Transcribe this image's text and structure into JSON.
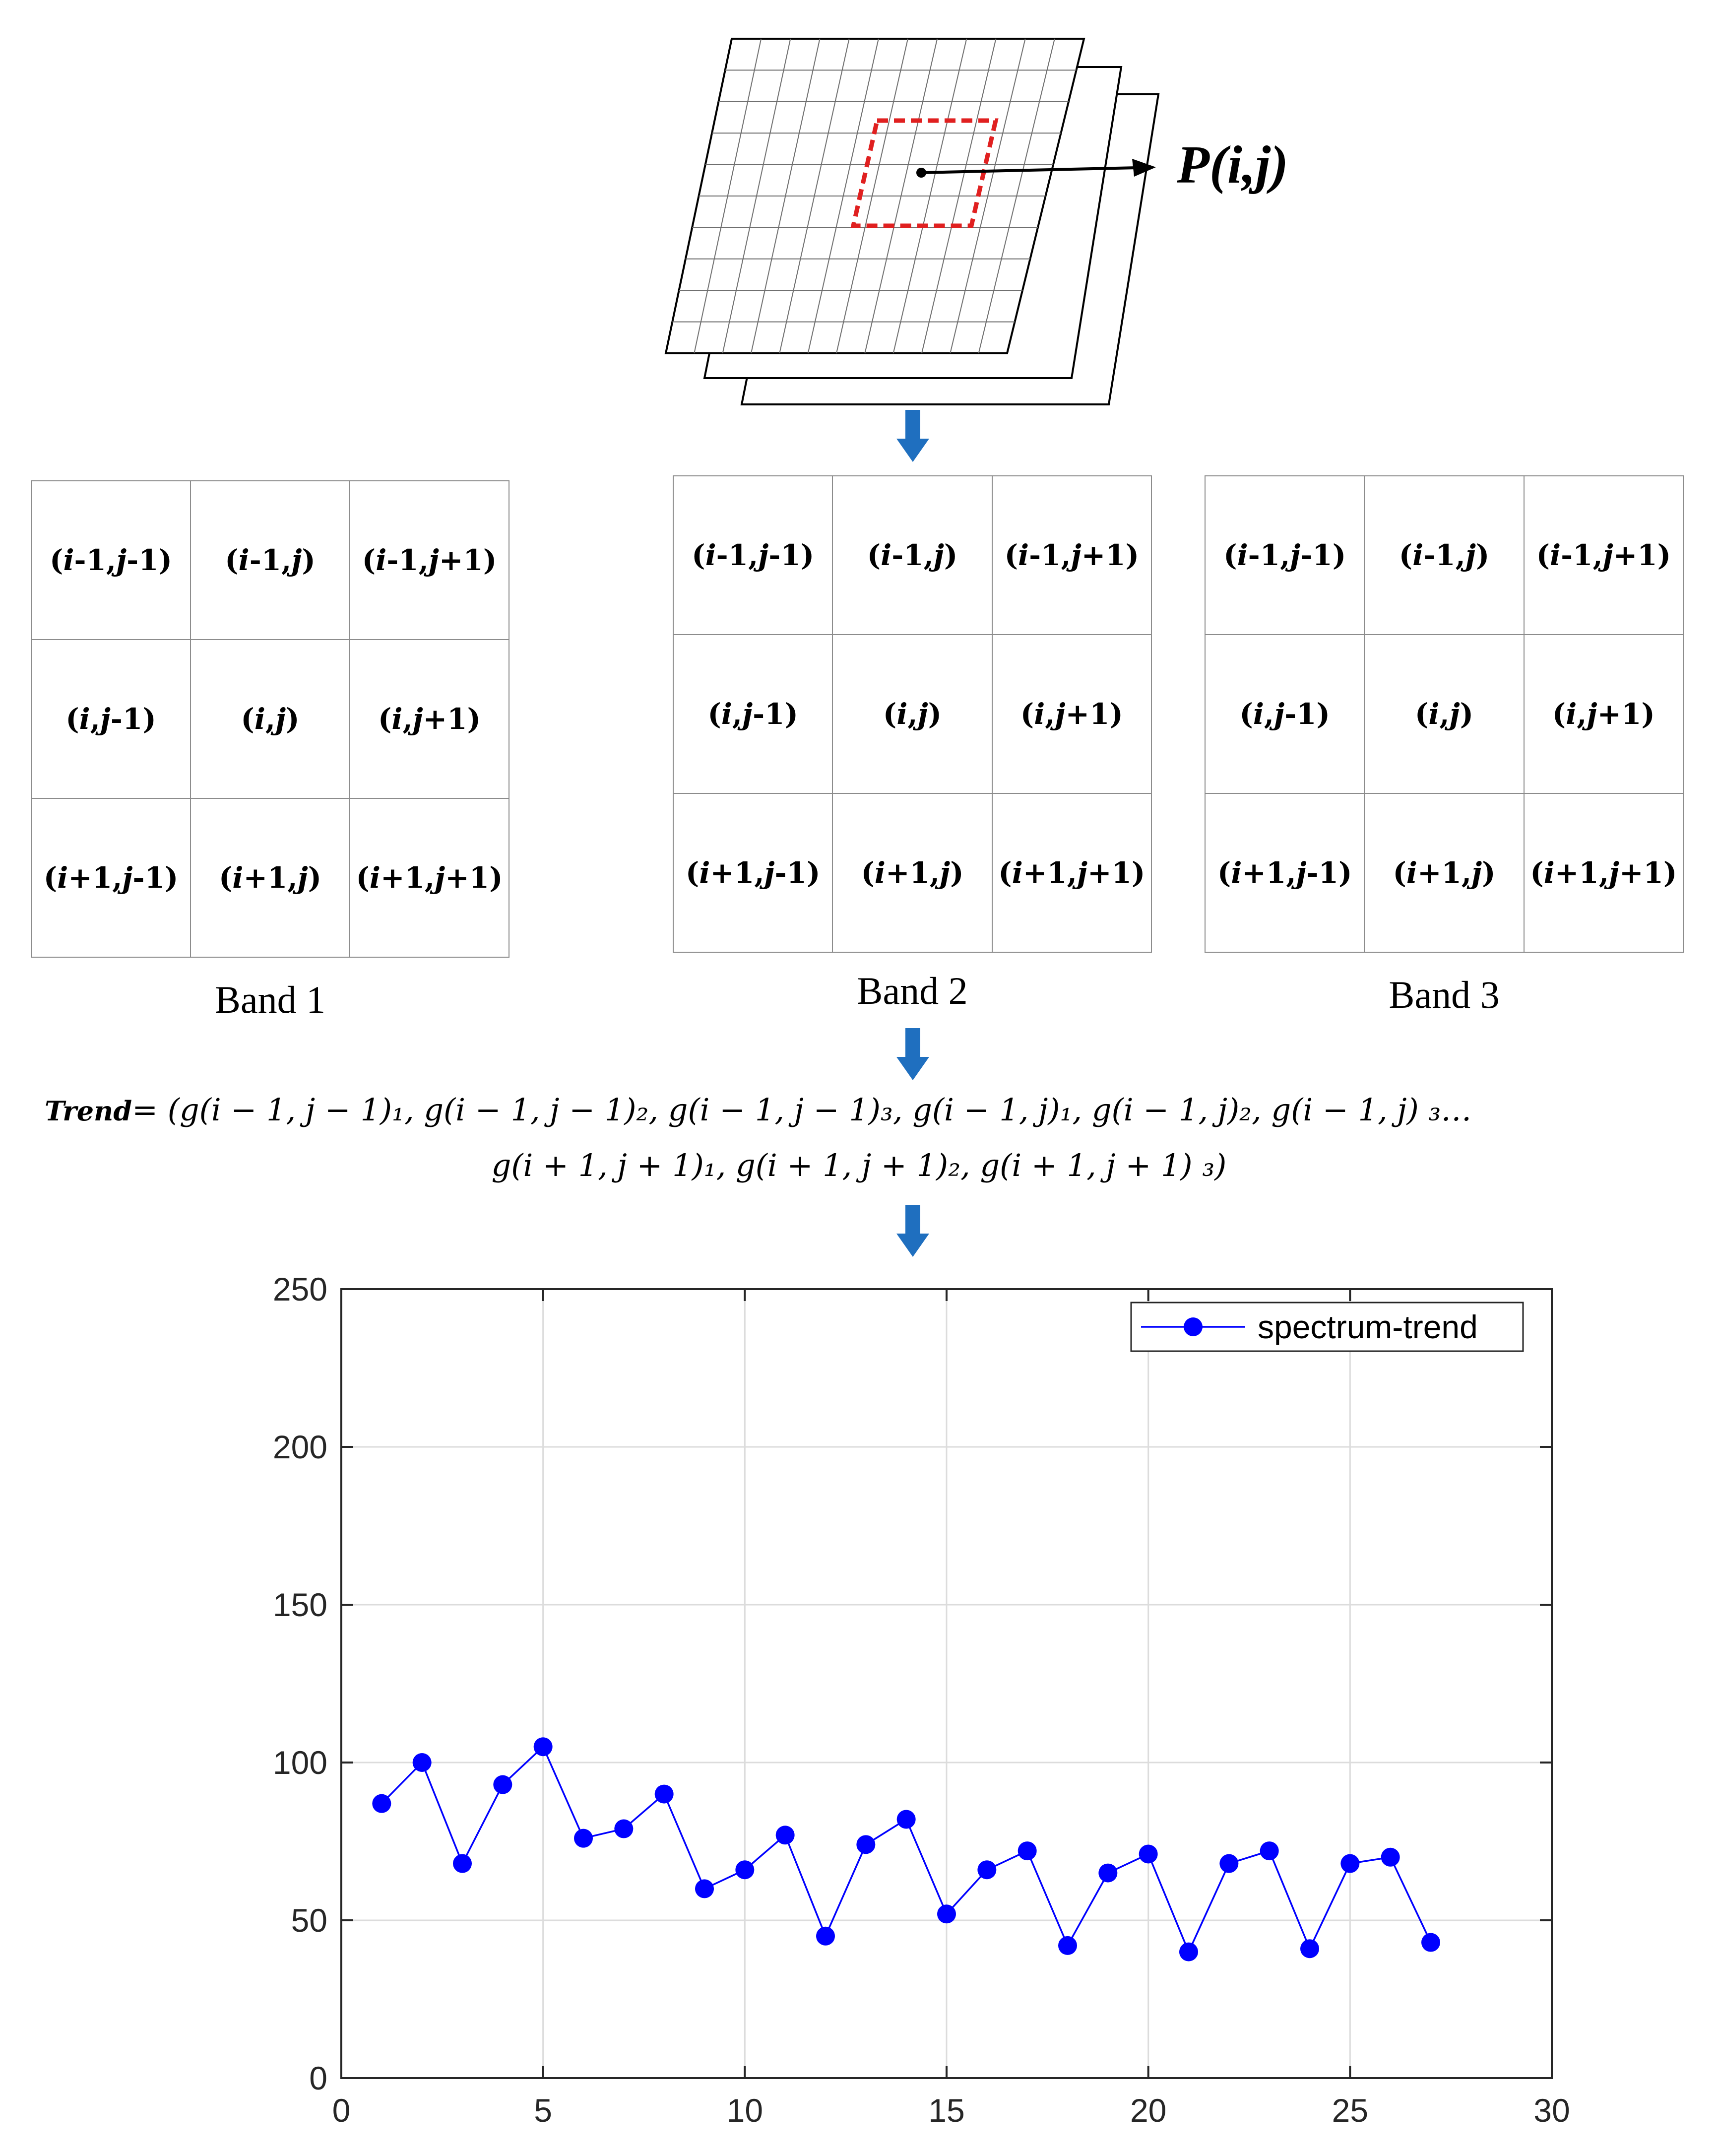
{
  "pixel_label": "P(i,j)",
  "bands": [
    {
      "label": "Band 1",
      "cells": [
        "(i-1,j-1)",
        "(i-1,j)",
        "(i-1,j+1)",
        "(i,j-1)",
        "(i,j)",
        "(i,j+1)",
        "(i+1,j-1)",
        "(i+1,j)",
        "(i+1,j+1)"
      ]
    },
    {
      "label": "Band 2",
      "cells": [
        "(i-1,j-1)",
        "(i-1,j)",
        "(i-1,j+1)",
        "(i,j-1)",
        "(i,j)",
        "(i,j+1)",
        "(i+1,j-1)",
        "(i+1,j)",
        "(i+1,j+1)"
      ]
    },
    {
      "label": "Band 3",
      "cells": [
        "(i-1,j-1)",
        "(i-1,j)",
        "(i-1,j+1)",
        "(i,j-1)",
        "(i,j)",
        "(i,j+1)",
        "(i+1,j-1)",
        "(i+1,j)",
        "(i+1,j+1)"
      ]
    }
  ],
  "formula": {
    "lead": "Trend",
    "line1": "= (g(i − 1, j − 1)₁, g(i − 1, j − 1)₂, g(i − 1, j − 1)₃, g(i − 1, j)₁, g(i − 1, j)₂, g(i − 1, j) ₃…",
    "line2": "g(i + 1, j + 1)₁, g(i + 1, j + 1)₂, g(i + 1, j + 1) ₃)"
  },
  "colors": {
    "arrow": "#1f6fbf",
    "series": "#0000ff",
    "highlight": "#e02020"
  },
  "chart_data": {
    "type": "line",
    "title": "",
    "xlabel": "",
    "ylabel": "",
    "xlim": [
      0,
      30
    ],
    "ylim": [
      0,
      250
    ],
    "xticks": [
      0,
      5,
      10,
      15,
      20,
      25,
      30
    ],
    "yticks": [
      0,
      50,
      100,
      150,
      200,
      250
    ],
    "grid": true,
    "legend_position": "top-right",
    "series": [
      {
        "name": "spectrum-trend",
        "x": [
          1,
          2,
          3,
          4,
          5,
          6,
          7,
          8,
          9,
          10,
          11,
          12,
          13,
          14,
          15,
          16,
          17,
          18,
          19,
          20,
          21,
          22,
          23,
          24,
          25,
          26,
          27
        ],
        "values": [
          87,
          100,
          68,
          93,
          105,
          76,
          79,
          90,
          60,
          66,
          77,
          45,
          74,
          82,
          52,
          66,
          72,
          42,
          65,
          71,
          40,
          68,
          72,
          41,
          68,
          70,
          43
        ]
      }
    ]
  }
}
